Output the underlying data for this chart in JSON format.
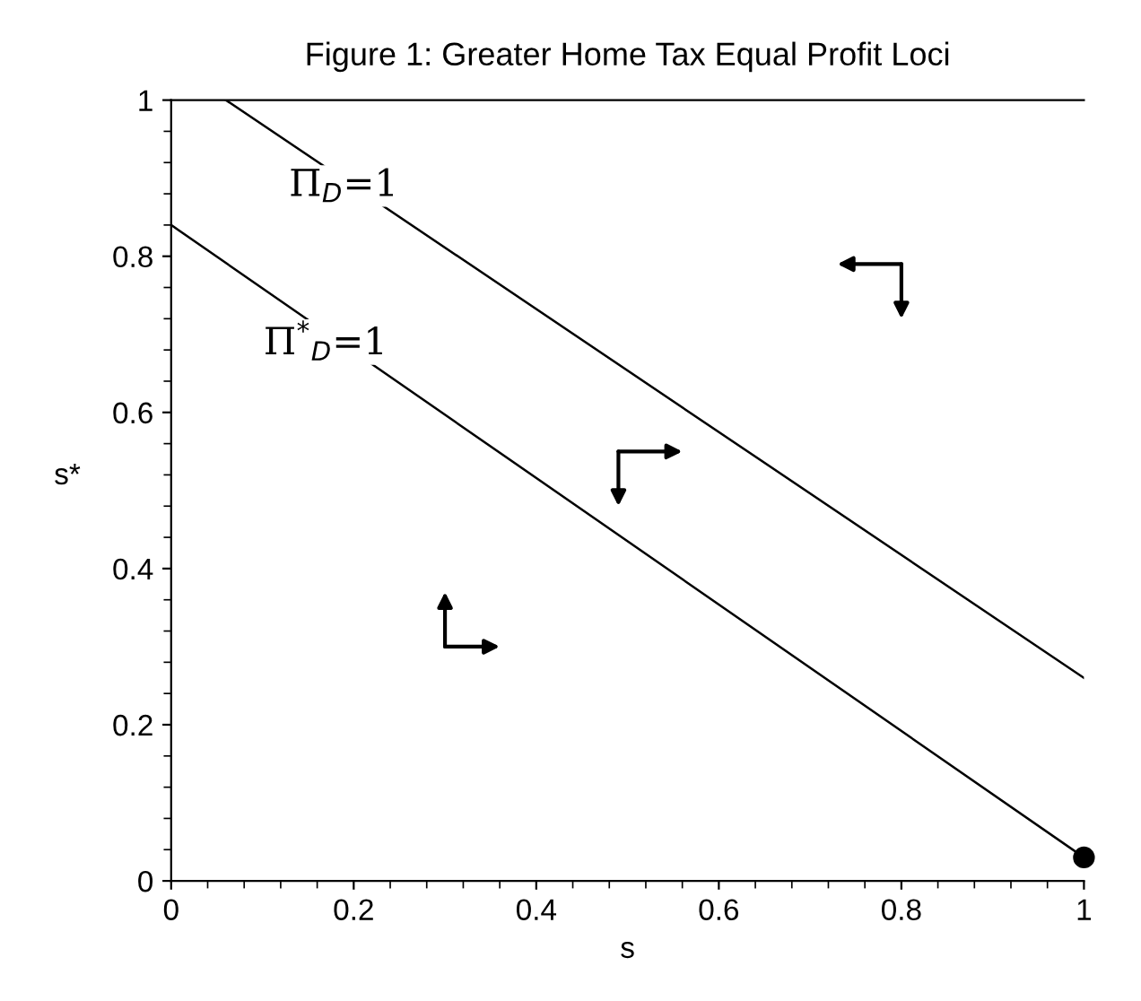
{
  "chart_data": {
    "type": "line",
    "title": "Figure 1: Greater Home Tax Equal Profit Loci",
    "xlabel": "s",
    "ylabel": "s*",
    "series": [
      {
        "color": "#000000",
        "x": [
          0.06,
          1
        ],
        "values": [
          1,
          0.26
        ]
      },
      {
        "color": "#000000",
        "x": [
          0,
          1
        ],
        "values": [
          0.84,
          0.03
        ]
      },
      {
        "type": "scatter",
        "marker": "circle",
        "color": "#000000",
        "x": [
          1
        ],
        "values": [
          0.03
        ]
      }
    ],
    "annotations": [
      {
        "text": "Π$_{D}$=1",
        "x": 0.2,
        "y": 0.89
      },
      {
        "text": "Π$^{*}$$_{D}$=1",
        "x": 0.18,
        "y": 0.69
      }
    ],
    "xlim": [
      0,
      1
    ],
    "ylim": [
      0,
      1
    ],
    "xticks": [
      0,
      0.2,
      0.4,
      0.6,
      0.8,
      1
    ],
    "yticks": [
      0,
      0.2,
      0.4,
      0.6,
      0.8,
      1
    ],
    "grid": false,
    "legend": false,
    "marker": "none",
    "line_style": "solid"
  }
}
